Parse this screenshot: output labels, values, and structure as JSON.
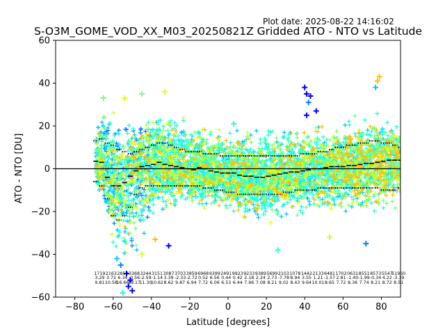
{
  "figure": {
    "plot_date": "Plot date: 2025-08-22 14:16:02",
    "title": "S-O3M_GOME_VOD_XX_M03_20250821Z Gridded ATO - NTO vs Latitude"
  },
  "chart_data": {
    "type": "scatter",
    "title": "S-O3M_GOME_VOD_XX_M03_20250821Z Gridded ATO - NTO vs Latitude",
    "xlabel": "Latitude [degrees]",
    "ylabel": "ATO - NTO [DU]",
    "xlim": [
      -90,
      90
    ],
    "ylim": [
      -60,
      60
    ],
    "xticks": [
      -80,
      -60,
      -40,
      -20,
      0,
      20,
      40,
      60,
      80
    ],
    "yticks": [
      -60,
      -40,
      -20,
      0,
      20,
      40,
      60
    ],
    "grid": false,
    "legend": "none",
    "marker": "+",
    "zero_line": 0,
    "colors": [
      "#0000ff",
      "#0080ff",
      "#00c8ff",
      "#20ffd8",
      "#7cff7a",
      "#d8ff20",
      "#ffc000"
    ],
    "scatter_envelope": {
      "lat": [
        -69,
        -66,
        -63,
        -60,
        -57,
        -54,
        -51,
        -48,
        -45,
        -42,
        -39,
        -36,
        -33,
        -30,
        -27,
        -24,
        -21,
        -18,
        -15,
        -12,
        -9,
        -6,
        -3,
        0,
        3,
        6,
        9,
        12,
        15,
        18,
        21,
        24,
        27,
        30,
        33,
        36,
        39,
        42,
        45,
        48,
        51,
        54,
        57,
        60,
        63,
        66,
        69,
        72,
        75,
        78,
        81,
        84,
        87,
        90
      ],
      "upper": [
        25,
        29,
        31,
        30,
        30,
        28,
        27,
        26,
        26,
        27,
        28,
        29,
        29,
        28,
        27,
        26,
        25,
        24,
        23,
        22,
        21,
        21,
        21,
        21,
        21,
        21,
        21,
        21,
        21,
        21,
        22,
        22,
        22,
        22,
        22,
        22,
        22,
        22,
        22,
        22,
        22,
        22,
        23,
        24,
        25,
        26,
        27,
        27,
        28,
        30,
        30,
        27,
        24,
        22
      ],
      "lower": [
        -10,
        -18,
        -30,
        -40,
        -45,
        -50,
        -52,
        -50,
        -42,
        -35,
        -30,
        -26,
        -24,
        -22,
        -21,
        -20,
        -20,
        -20,
        -20,
        -20,
        -21,
        -21,
        -22,
        -23,
        -24,
        -25,
        -27,
        -27,
        -28,
        -28,
        -27,
        -27,
        -26,
        -26,
        -25,
        -25,
        -24,
        -24,
        -24,
        -24,
        -24,
        -24,
        -24,
        -24,
        -24,
        -25,
        -25,
        -26,
        -27,
        -27,
        -26,
        -25,
        -22,
        -20
      ]
    },
    "median": {
      "lat": [
        -69,
        -66,
        -63,
        -60,
        -57,
        -54,
        -51,
        -48,
        -45,
        -42,
        -39,
        -36,
        -33,
        -30,
        -27,
        -24,
        -21,
        -18,
        -15,
        -12,
        -9,
        -6,
        -3,
        0,
        3,
        6,
        9,
        12,
        15,
        18,
        21,
        24,
        27,
        30,
        33,
        36,
        39,
        42,
        45,
        48,
        51,
        54,
        57,
        60,
        63,
        66,
        69,
        72,
        75,
        78,
        81,
        84,
        87,
        90
      ],
      "values": [
        3.5,
        3.0,
        -4.0,
        -8.0,
        -8.0,
        -6.5,
        -3.5,
        -1.0,
        1.0,
        1.5,
        2.0,
        3.0,
        2.0,
        1.5,
        1.0,
        0.5,
        0.0,
        -0.5,
        0.5,
        0.0,
        -1.0,
        -1.5,
        -2.0,
        -2.0,
        -2.0,
        -3.0,
        -3.5,
        -3.5,
        -4.0,
        -4.0,
        -3.5,
        -3.0,
        -2.5,
        -2.0,
        -1.5,
        -1.5,
        -1.0,
        -0.5,
        0.0,
        0.0,
        0.5,
        1.0,
        1.0,
        1.0,
        1.5,
        1.5,
        2.0,
        2.5,
        2.5,
        3.0,
        3.5,
        4.0,
        4.0,
        4.0
      ]
    },
    "upper_band": {
      "lat": [
        -69,
        -66,
        -63,
        -60,
        -57,
        -54,
        -51,
        -48,
        -45,
        -42,
        -39,
        -36,
        -33,
        -30,
        -27,
        -24,
        -21,
        -18,
        -15,
        -12,
        -9,
        -6,
        -3,
        0,
        3,
        6,
        9,
        12,
        15,
        18,
        21,
        24,
        27,
        30,
        33,
        36,
        39,
        42,
        45,
        48,
        51,
        54,
        57,
        60,
        63,
        66,
        69,
        72,
        75,
        78,
        81,
        84,
        87,
        90
      ],
      "values": [
        13,
        14,
        12,
        11,
        9,
        8,
        7,
        8,
        9,
        10,
        11,
        12,
        12,
        11,
        10,
        9,
        8,
        8,
        8,
        7,
        7,
        7,
        6,
        6,
        6,
        6,
        6,
        6,
        6,
        6,
        6,
        6,
        6,
        6,
        6,
        6,
        7,
        7,
        7,
        8,
        8,
        9,
        10,
        10,
        11,
        11,
        12,
        12,
        13,
        13,
        12,
        12,
        11,
        10
      ]
    },
    "lower_band": {
      "lat": [
        -69,
        -66,
        -63,
        -60,
        -57,
        -54,
        -51,
        -48,
        -45,
        -42,
        -39,
        -36,
        -33,
        -30,
        -27,
        -24,
        -21,
        -18,
        -15,
        -12,
        -9,
        -6,
        -3,
        0,
        3,
        6,
        9,
        12,
        15,
        18,
        21,
        24,
        27,
        30,
        33,
        36,
        39,
        42,
        45,
        48,
        51,
        54,
        57,
        60,
        63,
        66,
        69,
        72,
        75,
        78,
        81,
        84,
        87,
        90
      ],
      "values": [
        -6,
        -8,
        -14,
        -22,
        -24,
        -22,
        -18,
        -12,
        -9,
        -8,
        -8,
        -8,
        -8,
        -8,
        -8,
        -8,
        -8,
        -8,
        -8,
        -9,
        -9,
        -10,
        -10,
        -11,
        -11,
        -12,
        -12,
        -12,
        -12,
        -12,
        -12,
        -12,
        -12,
        -11,
        -11,
        -10,
        -10,
        -10,
        -10,
        -9,
        -9,
        -9,
        -9,
        -9,
        -9,
        -9,
        -9,
        -9,
        -9,
        -9,
        -10,
        -10,
        -10,
        -9
      ]
    },
    "outliers": [
      {
        "lat": -52,
        "value": -55,
        "color": "#0000ff"
      },
      {
        "lat": -51,
        "value": -52,
        "color": "#0000ff"
      },
      {
        "lat": -53,
        "value": -49,
        "color": "#0000ff"
      },
      {
        "lat": -50,
        "value": -57,
        "color": "#0000ff"
      },
      {
        "lat": -56,
        "value": -45,
        "color": "#0080ff"
      },
      {
        "lat": -58,
        "value": -42,
        "color": "#00c8ff"
      },
      {
        "lat": -55,
        "value": -58,
        "color": "#20ffd8"
      },
      {
        "lat": -45,
        "value": -40,
        "color": "#d8ff20"
      },
      {
        "lat": -38,
        "value": -33,
        "color": "#ffc000"
      },
      {
        "lat": -31,
        "value": -36,
        "color": "#0000ff"
      },
      {
        "lat": 40,
        "value": 38,
        "color": "#0000ff"
      },
      {
        "lat": 41,
        "value": 35,
        "color": "#0000ff"
      },
      {
        "lat": 43,
        "value": 34,
        "color": "#0000ff"
      },
      {
        "lat": 42,
        "value": 31,
        "color": "#0080ff"
      },
      {
        "lat": 46,
        "value": 27,
        "color": "#0000ff"
      },
      {
        "lat": 41,
        "value": 25,
        "color": "#0000ff"
      },
      {
        "lat": 79,
        "value": 43,
        "color": "#ffc000"
      },
      {
        "lat": 78,
        "value": 41,
        "color": "#ffc000"
      },
      {
        "lat": 77,
        "value": 38,
        "color": "#00c8ff"
      },
      {
        "lat": 72,
        "value": -35,
        "color": "#0080ff"
      },
      {
        "lat": 53,
        "value": -32,
        "color": "#d8ff20"
      },
      {
        "lat": 26,
        "value": -38,
        "color": "#20ffd8"
      },
      {
        "lat": -33,
        "value": 36,
        "color": "#d8ff20"
      },
      {
        "lat": -45,
        "value": 35,
        "color": "#7cff7a"
      },
      {
        "lat": -54,
        "value": 33,
        "color": "#d8ff20"
      },
      {
        "lat": -65,
        "value": 33,
        "color": "#7cff7a"
      },
      {
        "lat": 3,
        "value": 21,
        "color": "#20ffd8"
      }
    ],
    "annotations": {
      "lat": [
        -67,
        -61,
        -55,
        -49,
        -43,
        -37,
        -31,
        -25,
        -19,
        -13,
        -7,
        -1,
        5,
        11,
        17,
        23,
        29,
        35,
        41,
        47,
        53,
        59,
        65,
        71,
        77,
        83,
        89
      ],
      "row1": [
        "1719",
        "2163",
        "2853",
        "3368",
        "3244",
        "3151",
        "3087",
        "3703",
        "3959",
        "6968",
        "9399",
        "2491",
        "9923",
        "9233",
        "9389",
        "5699",
        "2103",
        "1078",
        "1442",
        "2133",
        "6481",
        "1702",
        "0631",
        "8551",
        "8573",
        "5547",
        "51960"
      ],
      "row2": [
        "3.29",
        "3.72",
        "6.34",
        "-0.56",
        "-2.59",
        "-1.14",
        "3.39",
        "-2.33",
        "-2.72",
        "0.52",
        "6.56",
        "0.44",
        "0.42",
        "2.18",
        "2.24",
        "2.73",
        "-7.78",
        "8.94",
        "3.55",
        "1.21",
        "-1.57",
        "2.81",
        "-1.40",
        "-1.99",
        "-0.34",
        "4.22",
        "-3.39"
      ],
      "row3": [
        "9.81",
        "10.58",
        "16.66",
        "19.17",
        "11.30",
        "10.62",
        "8.62",
        "9.87",
        "6.94",
        "7.72",
        "6.06",
        "6.53",
        "6.44",
        "7.96",
        "7.08",
        "8.21",
        "9.02",
        "8.43",
        "9.64",
        "10.01",
        "8.65",
        "7.72",
        "8.36",
        "7.74",
        "8.21",
        "8.72",
        "8.51"
      ]
    }
  }
}
